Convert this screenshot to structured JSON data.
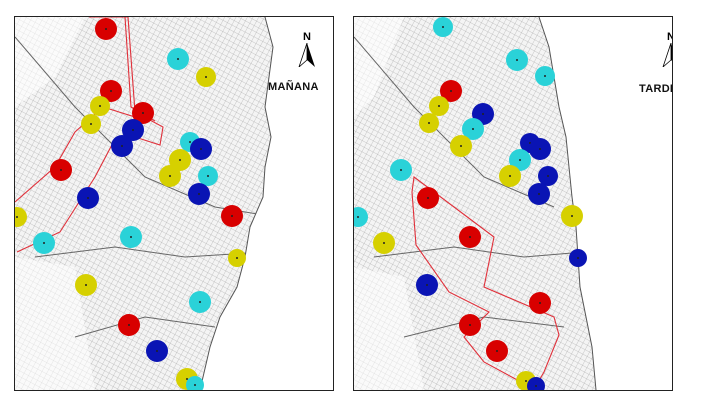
{
  "panels": {
    "left": {
      "label": "MAÑANA",
      "north_letter": "N"
    },
    "right": {
      "label": "TARDE",
      "north_letter": "N"
    }
  },
  "legend_colors": {
    "red": "#d80000",
    "blue": "#0a14b4",
    "yellow": "#d6d000",
    "cyan": "#2ad2d8",
    "route": "#e0303a",
    "sea": "#ffffff",
    "land": "#f4f4f4"
  },
  "icons": [
    "north-arrow-icon"
  ]
}
